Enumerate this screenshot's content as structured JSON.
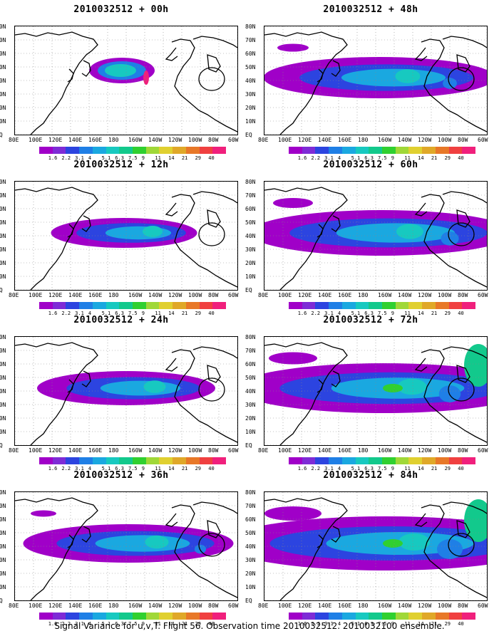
{
  "panels": [
    {
      "title": "2010032512 + 00h",
      "intensity": 0.0,
      "spread": 0.0
    },
    {
      "title": "2010032512 + 48h",
      "intensity": 0.55,
      "spread": 0.55
    },
    {
      "title": "2010032512 + 12h",
      "intensity": 0.2,
      "spread": 0.15
    },
    {
      "title": "2010032512 + 60h",
      "intensity": 0.7,
      "spread": 0.7
    },
    {
      "title": "2010032512 + 24h",
      "intensity": 0.35,
      "spread": 0.3
    },
    {
      "title": "2010032512 + 72h",
      "intensity": 0.85,
      "spread": 0.85
    },
    {
      "title": "2010032512 + 36h",
      "intensity": 0.45,
      "spread": 0.45
    },
    {
      "title": "2010032512 + 84h",
      "intensity": 1.0,
      "spread": 1.0
    }
  ],
  "lat_labels": [
    "80N",
    "70N",
    "60N",
    "50N",
    "40N",
    "30N",
    "20N",
    "10N",
    "EQ"
  ],
  "lon_labels": [
    "80E",
    "100E",
    "120E",
    "140E",
    "160E",
    "180",
    "160W",
    "140W",
    "120W",
    "100W",
    "80W",
    "60W"
  ],
  "colorbar": {
    "labels": [
      "1.6",
      "2.2",
      "3.1",
      "4",
      "5.1",
      "6.3",
      "7.5",
      "9",
      "11",
      "14",
      "21",
      "29",
      "40"
    ],
    "colors": [
      "#a000c8",
      "#7e2bd6",
      "#2c44e0",
      "#1f7fe6",
      "#1aa8e0",
      "#17c9c0",
      "#12c98c",
      "#30d030",
      "#a0d838",
      "#e0d030",
      "#e0a828",
      "#e87828",
      "#f04040",
      "#f0207c"
    ]
  },
  "footer": "Signal Variance for u,v,T. Flight 56. Observation time 2010032512. 2010032100 ensemble."
}
